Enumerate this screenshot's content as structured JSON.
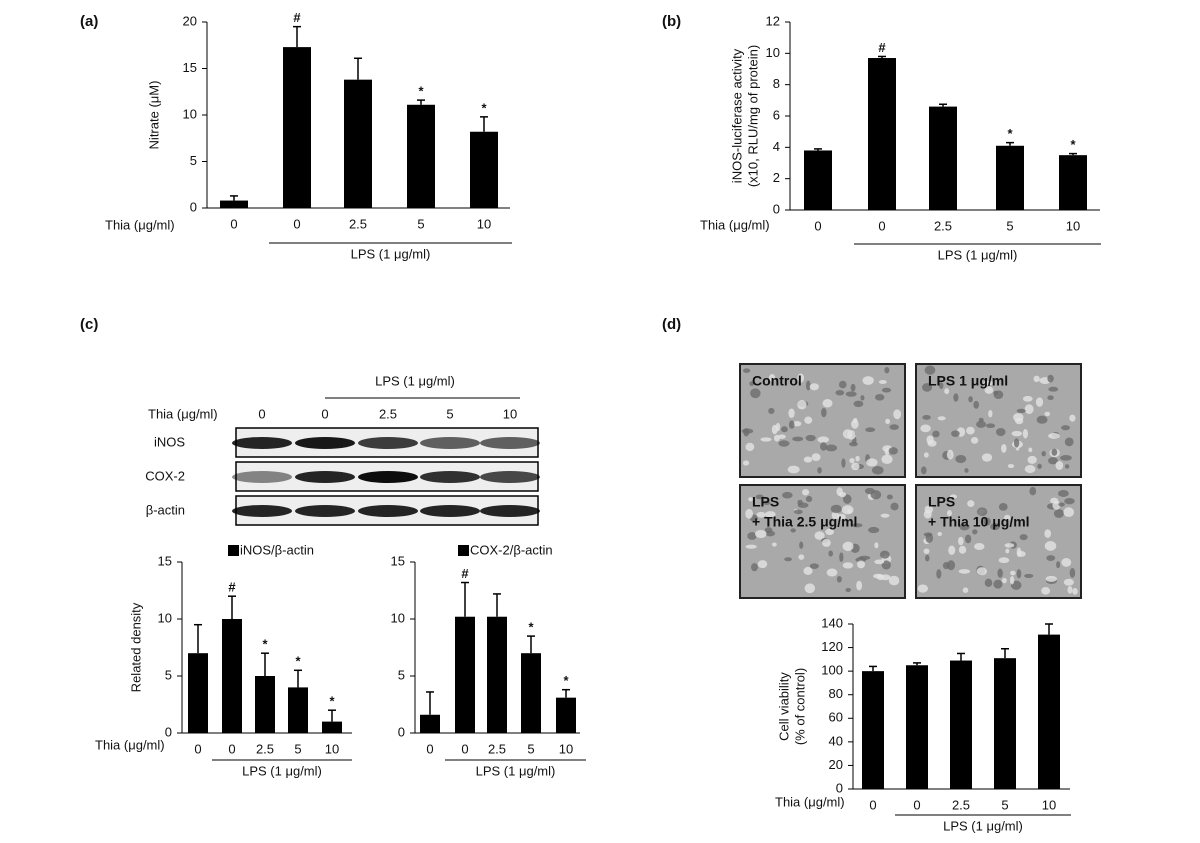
{
  "panel_labels": [
    "(a)",
    "(b)",
    "(c)",
    "(d)"
  ],
  "blot": {
    "group_label": "LPS (1 μg/ml)",
    "xlabel": "Thia (μg/ml)",
    "lanes": [
      "0",
      "0",
      "2.5",
      "5",
      "10"
    ],
    "rows": [
      "iNOS",
      "COX-2",
      "β-actin"
    ]
  },
  "micrographs": [
    [
      "Control"
    ],
    [
      "LPS 1 μg/ml"
    ],
    [
      "LPS",
      "+ Thia 2.5 μg/ml"
    ],
    [
      "LPS",
      "+ Thia 10 μg/ml"
    ]
  ],
  "chart_data": [
    {
      "type": "bar",
      "ylabel": [
        "Nitrate (μM)"
      ],
      "xlabel": "Thia  (μg/ml)",
      "group_label": "LPS (1 μg/ml)",
      "group_span": [
        1,
        4
      ],
      "color": "#000000",
      "categories": [
        "0",
        "0",
        "2.5",
        "5",
        "10"
      ],
      "values": [
        0.8,
        17.3,
        13.8,
        11.1,
        8.2
      ],
      "errors": [
        0.5,
        2.2,
        2.3,
        0.5,
        1.6
      ],
      "ylim": [
        0,
        20
      ],
      "yticks": [
        0,
        5,
        10,
        15,
        20
      ],
      "annotations": [
        {
          "index": 1,
          "text": "#"
        },
        {
          "index": 3,
          "text": "*"
        },
        {
          "index": 4,
          "text": "*"
        }
      ]
    },
    {
      "type": "bar",
      "ylabel": [
        "iNOS-luciferase activity",
        "(x10, RLU/mg of protein)"
      ],
      "xlabel": "Thia  (μg/ml)",
      "group_label": "LPS (1 μg/ml)",
      "group_span": [
        1,
        4
      ],
      "color": "#000000",
      "categories": [
        "0",
        "0",
        "2.5",
        "5",
        "10"
      ],
      "values": [
        3.8,
        9.7,
        6.6,
        4.1,
        3.5
      ],
      "errors": [
        0.1,
        0.1,
        0.15,
        0.2,
        0.1
      ],
      "ylim": [
        0,
        12
      ],
      "yticks": [
        0,
        2,
        4,
        6,
        8,
        10,
        12
      ],
      "annotations": [
        {
          "index": 1,
          "text": "#"
        },
        {
          "index": 3,
          "text": "*"
        },
        {
          "index": 4,
          "text": "*"
        }
      ]
    },
    {
      "type": "bar",
      "ylabel": [
        "Related density"
      ],
      "xlabel": "Thia  (μg/ml)",
      "group_label": "LPS (1 μg/ml)",
      "group_span": [
        1,
        4
      ],
      "color": "#000000",
      "legend": "iNOS/β-actin",
      "categories": [
        "0",
        "0",
        "2.5",
        "5",
        "10"
      ],
      "values": [
        7,
        10,
        5,
        4,
        1
      ],
      "errors": [
        2.5,
        2,
        2,
        1.5,
        1
      ],
      "ylim": [
        0,
        15
      ],
      "yticks": [
        0,
        5,
        10,
        15
      ],
      "annotations": [
        {
          "index": 1,
          "text": "#"
        },
        {
          "index": 2,
          "text": "*"
        },
        {
          "index": 3,
          "text": "*"
        },
        {
          "index": 4,
          "text": "*"
        }
      ]
    },
    {
      "type": "bar",
      "group_label": "LPS (1 μg/ml)",
      "group_span": [
        1,
        4
      ],
      "color": "#000000",
      "legend": "COX-2/β-actin",
      "categories": [
        "0",
        "0",
        "2.5",
        "5",
        "10"
      ],
      "values": [
        1.6,
        10.2,
        10.2,
        7,
        3.1
      ],
      "errors": [
        2,
        3,
        2,
        1.5,
        0.7
      ],
      "ylim": [
        0,
        15
      ],
      "yticks": [
        0,
        5,
        10,
        15
      ],
      "annotations": [
        {
          "index": 1,
          "text": "#"
        },
        {
          "index": 3,
          "text": "*"
        },
        {
          "index": 4,
          "text": "*"
        }
      ]
    },
    {
      "type": "bar",
      "ylabel": [
        "Cell viability",
        "(% of control)"
      ],
      "xlabel": "Thia  (μg/ml)",
      "group_label": "LPS (1 μg/ml)",
      "group_span": [
        1,
        4
      ],
      "color": "#000000",
      "categories": [
        "0",
        "0",
        "2.5",
        "5",
        "10"
      ],
      "values": [
        100,
        105,
        109,
        111,
        131
      ],
      "errors": [
        4,
        2,
        6,
        8,
        9
      ],
      "ylim": [
        0,
        140
      ],
      "yticks": [
        0,
        20,
        40,
        60,
        80,
        100,
        120,
        140
      ],
      "annotations": []
    }
  ]
}
